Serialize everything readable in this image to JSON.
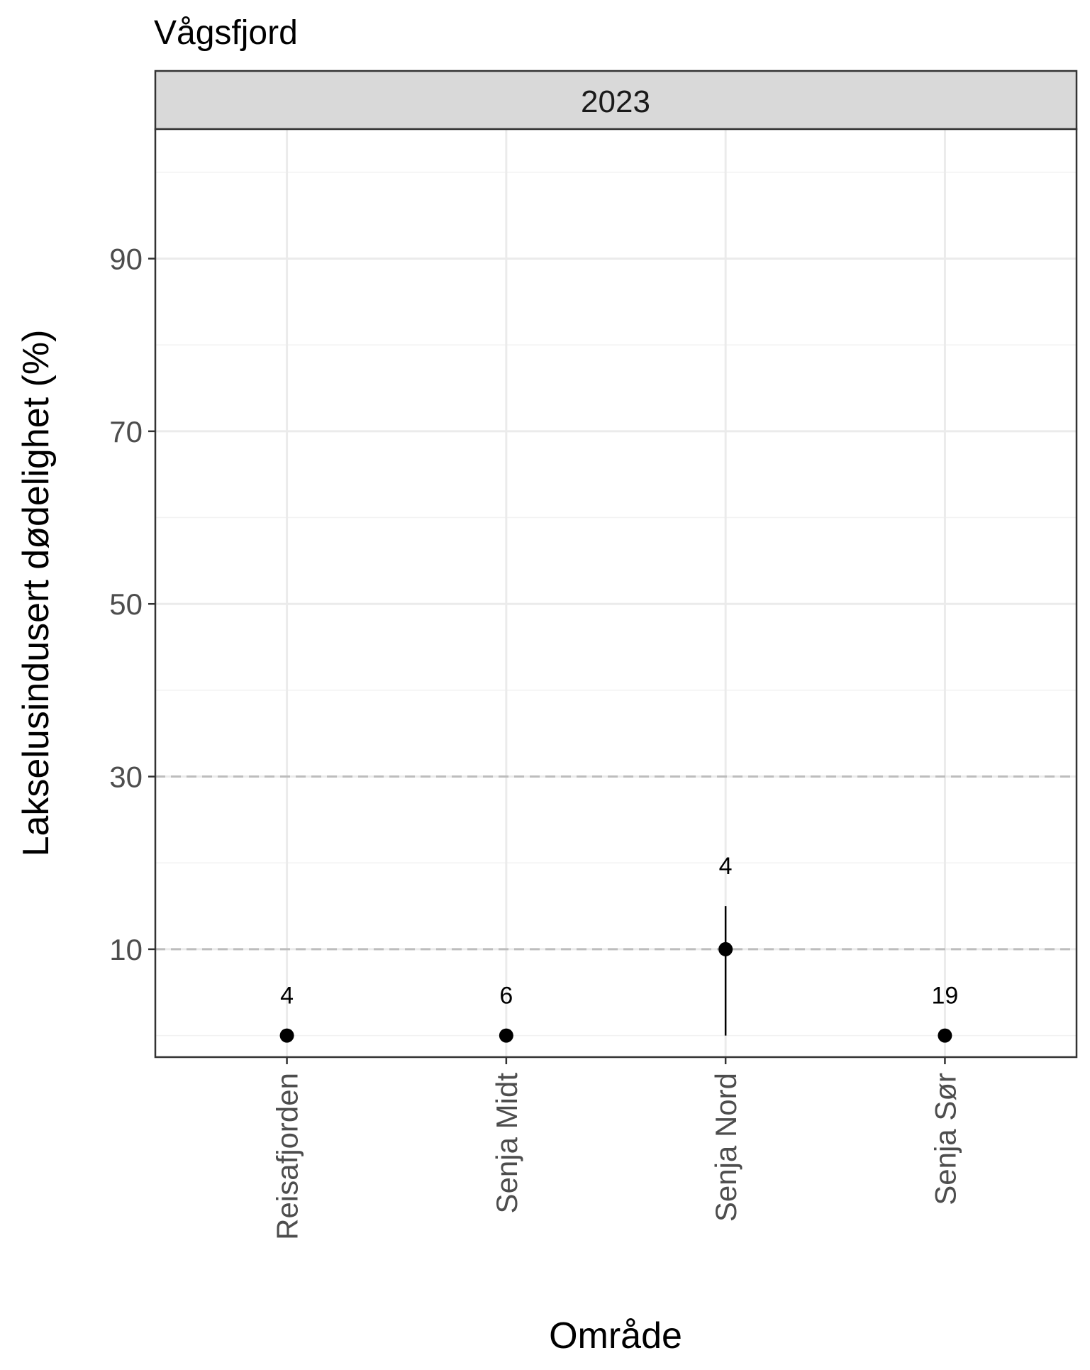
{
  "chart_data": {
    "type": "scatter",
    "title": "Vågsfjord",
    "facet": "2023",
    "xlabel": "Område",
    "ylabel": "Lakselusindusert dødelighet (%)",
    "categories": [
      "Reisafjorden",
      "Senja Midt",
      "Senja Nord",
      "Senja Sør"
    ],
    "values": [
      0,
      0,
      10,
      0
    ],
    "error_bars": [
      null,
      null,
      [
        0,
        15
      ],
      null
    ],
    "point_labels": [
      "4",
      "6",
      "4",
      "19"
    ],
    "yticks": [
      10,
      30,
      50,
      70,
      90
    ],
    "ylim": [
      -2.5,
      105
    ],
    "reference_lines": [
      10,
      30
    ],
    "grid": true
  }
}
